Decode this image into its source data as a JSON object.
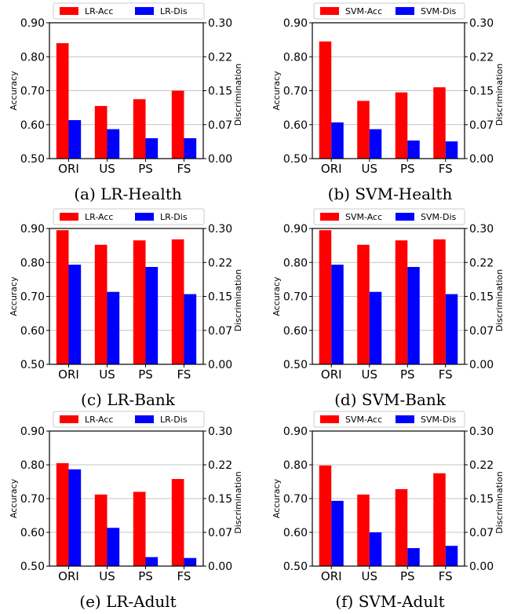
{
  "chart_data": [
    {
      "type": "bar",
      "caption": "(a) LR-Health",
      "categories": [
        "ORI",
        "US",
        "PS",
        "FS"
      ],
      "series": [
        {
          "name": "LR-Acc",
          "axis": "left",
          "color": "#ff0000",
          "values": [
            0.84,
            0.655,
            0.675,
            0.7
          ]
        },
        {
          "name": "LR-Dis",
          "axis": "right",
          "color": "#0000ff",
          "values": [
            0.085,
            0.065,
            0.045,
            0.045
          ]
        }
      ],
      "ylabel": "Accuracy",
      "ylim": [
        0.5,
        0.9
      ],
      "yticks": [
        "0.50",
        "0.60",
        "0.70",
        "0.80",
        "0.90"
      ],
      "y2label": "Discrimination",
      "y2lim": [
        0,
        0.3
      ],
      "y2ticks": [
        "0.00",
        "0.07",
        "0.15",
        "0.22",
        "0.30"
      ],
      "grid": "horizontal",
      "legend": "top"
    },
    {
      "type": "bar",
      "caption": "(b) SVM-Health",
      "categories": [
        "ORI",
        "US",
        "PS",
        "FS"
      ],
      "series": [
        {
          "name": "SVM-Acc",
          "axis": "left",
          "color": "#ff0000",
          "values": [
            0.845,
            0.67,
            0.695,
            0.71
          ]
        },
        {
          "name": "SVM-Dis",
          "axis": "right",
          "color": "#0000ff",
          "values": [
            0.08,
            0.065,
            0.04,
            0.038
          ]
        }
      ],
      "ylabel": "Accuracy",
      "ylim": [
        0.5,
        0.9
      ],
      "yticks": [
        "0.50",
        "0.60",
        "0.70",
        "0.80",
        "0.90"
      ],
      "y2label": "Discrimination",
      "y2lim": [
        0,
        0.3
      ],
      "y2ticks": [
        "0.00",
        "0.07",
        "0.15",
        "0.22",
        "0.30"
      ],
      "grid": "horizontal",
      "legend": "top"
    },
    {
      "type": "bar",
      "caption": "(c) LR-Bank",
      "categories": [
        "ORI",
        "US",
        "PS",
        "FS"
      ],
      "series": [
        {
          "name": "LR-Acc",
          "axis": "left",
          "color": "#ff0000",
          "values": [
            0.895,
            0.852,
            0.865,
            0.868
          ]
        },
        {
          "name": "LR-Dis",
          "axis": "right",
          "color": "#0000ff",
          "values": [
            0.22,
            0.16,
            0.215,
            0.155
          ]
        }
      ],
      "ylabel": "Accuracy",
      "ylim": [
        0.5,
        0.9
      ],
      "yticks": [
        "0.50",
        "0.60",
        "0.70",
        "0.80",
        "0.90"
      ],
      "y2label": "Discrimination",
      "y2lim": [
        0,
        0.3
      ],
      "y2ticks": [
        "0.00",
        "0.07",
        "0.15",
        "0.22",
        "0.30"
      ],
      "grid": "horizontal",
      "legend": "top"
    },
    {
      "type": "bar",
      "caption": "(d) SVM-Bank",
      "categories": [
        "ORI",
        "US",
        "PS",
        "FS"
      ],
      "series": [
        {
          "name": "SVM-Acc",
          "axis": "left",
          "color": "#ff0000",
          "values": [
            0.895,
            0.852,
            0.865,
            0.868
          ]
        },
        {
          "name": "SVM-Dis",
          "axis": "right",
          "color": "#0000ff",
          "values": [
            0.22,
            0.16,
            0.215,
            0.155
          ]
        }
      ],
      "ylabel": "Accuracy",
      "ylim": [
        0.5,
        0.9
      ],
      "yticks": [
        "0.50",
        "0.60",
        "0.70",
        "0.80",
        "0.90"
      ],
      "y2label": "Discrimination",
      "y2lim": [
        0,
        0.3
      ],
      "y2ticks": [
        "0.00",
        "0.07",
        "0.15",
        "0.22",
        "0.30"
      ],
      "grid": "horizontal",
      "legend": "top"
    },
    {
      "type": "bar",
      "caption": "(e) LR-Adult",
      "categories": [
        "ORI",
        "US",
        "PS",
        "FS"
      ],
      "series": [
        {
          "name": "LR-Acc",
          "axis": "left",
          "color": "#ff0000",
          "values": [
            0.805,
            0.712,
            0.72,
            0.758
          ]
        },
        {
          "name": "LR-Dis",
          "axis": "right",
          "color": "#0000ff",
          "values": [
            0.215,
            0.085,
            0.02,
            0.018
          ]
        }
      ],
      "ylabel": "Accuracy",
      "ylim": [
        0.5,
        0.9
      ],
      "yticks": [
        "0.50",
        "0.60",
        "0.70",
        "0.80",
        "0.90"
      ],
      "y2label": "Discrimination",
      "y2lim": [
        0,
        0.3
      ],
      "y2ticks": [
        "0.00",
        "0.07",
        "0.15",
        "0.22",
        "0.30"
      ],
      "grid": "horizontal",
      "legend": "top"
    },
    {
      "type": "bar",
      "caption": "(f) SVM-Adult",
      "categories": [
        "ORI",
        "US",
        "PS",
        "FS"
      ],
      "series": [
        {
          "name": "SVM-Acc",
          "axis": "left",
          "color": "#ff0000",
          "values": [
            0.798,
            0.712,
            0.728,
            0.775
          ]
        },
        {
          "name": "SVM-Dis",
          "axis": "right",
          "color": "#0000ff",
          "values": [
            0.145,
            0.075,
            0.04,
            0.045
          ]
        }
      ],
      "ylabel": "Accuracy",
      "ylim": [
        0.5,
        0.9
      ],
      "yticks": [
        "0.50",
        "0.60",
        "0.70",
        "0.80",
        "0.90"
      ],
      "y2label": "Discrimination",
      "y2lim": [
        0,
        0.3
      ],
      "y2ticks": [
        "0.00",
        "0.07",
        "0.15",
        "0.22",
        "0.30"
      ],
      "grid": "horizontal",
      "legend": "top"
    }
  ]
}
